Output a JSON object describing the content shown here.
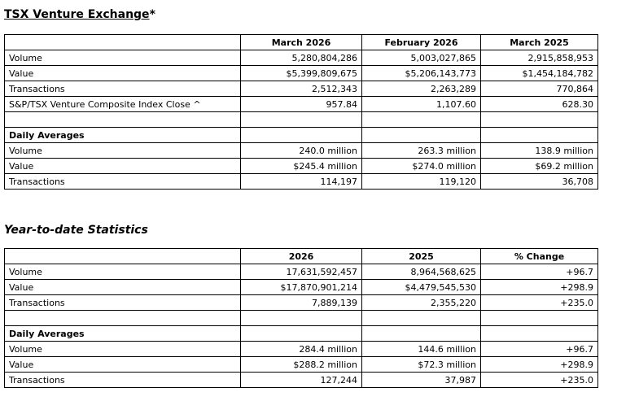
{
  "page": {
    "title": "TSX Venture Exchange",
    "title_suffix": "*",
    "ytd_title": "Year-to-date Statistics"
  },
  "monthly_table": {
    "columns": [
      "",
      "March 2026",
      "February 2026",
      "March 2025"
    ],
    "rows": [
      {
        "label": "Volume",
        "c1": "5,280,804,286",
        "c2": "5,003,027,865",
        "c3": "2,915,858,953"
      },
      {
        "label": "Value",
        "c1": "$5,399,809,675",
        "c2": "$5,206,143,773",
        "c3": "$1,454,184,782"
      },
      {
        "label": "Transactions",
        "c1": "2,512,343",
        "c2": "2,263,289",
        "c3": "770,864"
      },
      {
        "label": "S&P/TSX Venture Composite Index Close ^",
        "c1": "957.84",
        "c2": "1,107.60",
        "c3": "628.30"
      },
      {
        "label": "",
        "c1": "",
        "c2": "",
        "c3": ""
      },
      {
        "label": "Daily Averages",
        "c1": "",
        "c2": "",
        "c3": ""
      },
      {
        "label": "Volume",
        "c1": "240.0 million",
        "c2": "263.3 million",
        "c3": "138.9 million"
      },
      {
        "label": "Value",
        "c1": "$245.4 million",
        "c2": "$274.0 million",
        "c3": "$69.2 million"
      },
      {
        "label": "Transactions",
        "c1": "114,197",
        "c2": "119,120",
        "c3": "36,708"
      }
    ]
  },
  "ytd_table": {
    "columns": [
      "",
      "2026",
      "2025",
      "% Change"
    ],
    "rows": [
      {
        "label": "Volume",
        "c1": "17,631,592,457",
        "c2": "8,964,568,625",
        "c3": "+96.7"
      },
      {
        "label": "Value",
        "c1": "$17,870,901,214",
        "c2": "$4,479,545,530",
        "c3": "+298.9"
      },
      {
        "label": "Transactions",
        "c1": "7,889,139",
        "c2": "2,355,220",
        "c3": "+235.0"
      },
      {
        "label": "",
        "c1": "",
        "c2": "",
        "c3": ""
      },
      {
        "label": "Daily Averages",
        "c1": "",
        "c2": "",
        "c3": ""
      },
      {
        "label": "Volume",
        "c1": "284.4 million",
        "c2": "144.6 million",
        "c3": "+96.7"
      },
      {
        "label": "Value",
        "c1": "$288.2 million",
        "c2": "$72.3 million",
        "c3": "+298.9"
      },
      {
        "label": "Transactions",
        "c1": "127,244",
        "c2": "37,987",
        "c3": "+235.0"
      }
    ]
  }
}
